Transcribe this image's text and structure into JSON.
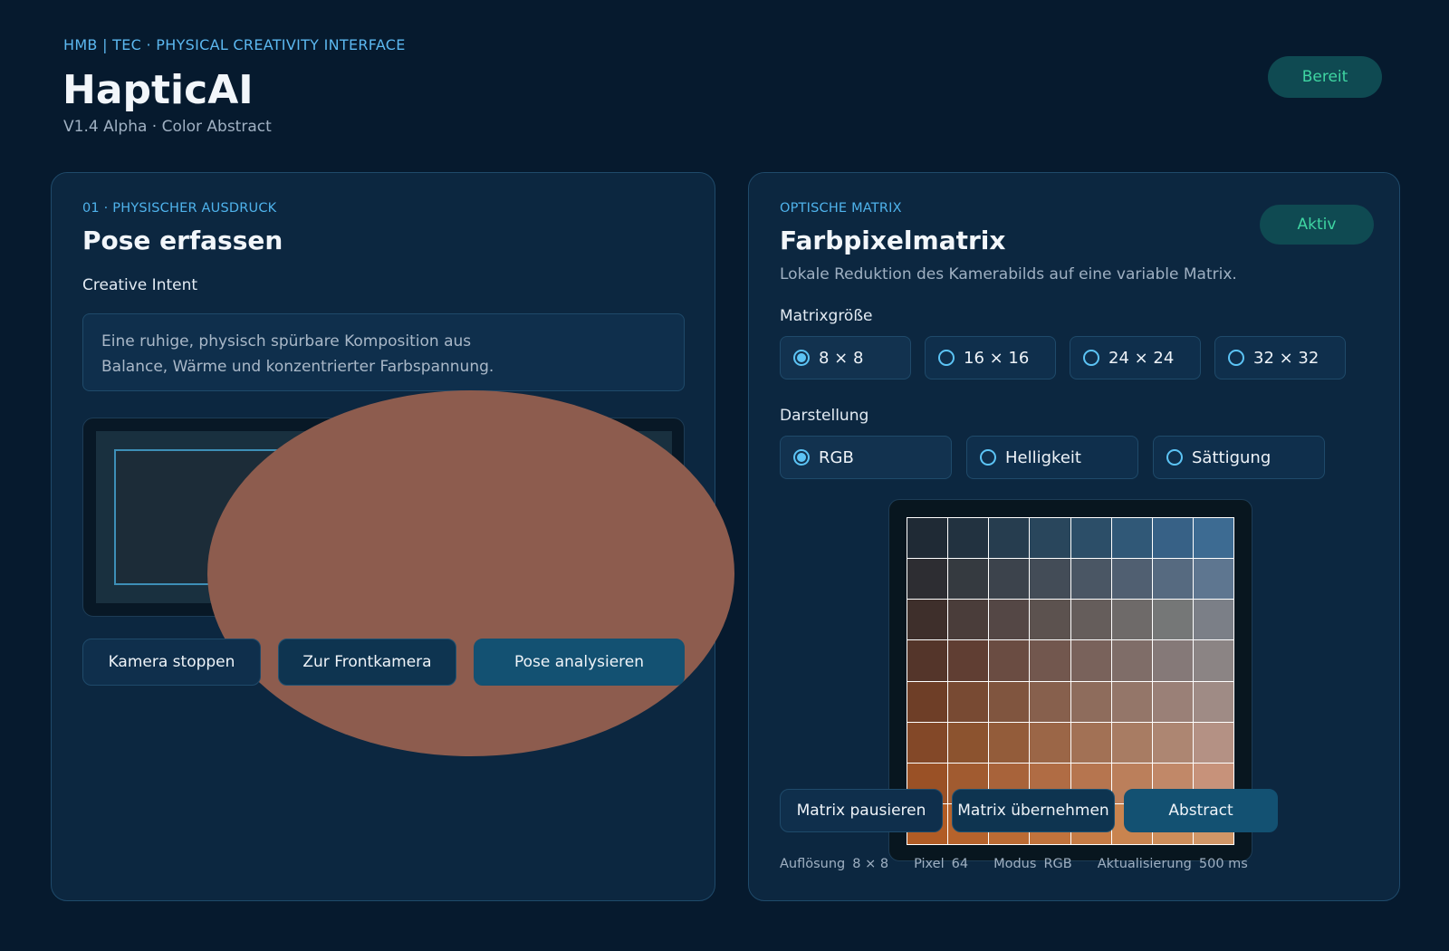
{
  "header": {
    "eyebrow": "HMB | TEC · PHYSICAL CREATIVITY INTERFACE",
    "title": "HapticAI",
    "subtitle": "V1.4 Alpha · Color Abstract",
    "status": "Bereit",
    "status_color": "#3fd5a2"
  },
  "left": {
    "kicker": "01 · PHYSISCHER AUSDRUCK",
    "title": "Pose erfassen",
    "intent_label": "Creative Intent",
    "intent_text_line1": "Eine ruhige, physisch spürbare Komposition aus",
    "intent_text_line2": "Balance, Wärme und konzentrierter Farbspannung.",
    "buttons": {
      "stop_camera": "Kamera stoppen",
      "front_camera": "Zur Frontkamera",
      "analyze": "Pose analysieren"
    }
  },
  "right": {
    "kicker": "OPTISCHE MATRIX",
    "title": "Farbpixelmatrix",
    "status": "Aktiv",
    "description": "Lokale Reduktion des Kamerabilds auf eine variable Matrix.",
    "size_label": "Matrixgröße",
    "size_options": [
      "8 × 8",
      "16 × 16",
      "24 × 24",
      "32 × 32"
    ],
    "size_selected": "8 × 8",
    "mode_label": "Darstellung",
    "mode_options": [
      "RGB",
      "Helligkeit",
      "Sättigung"
    ],
    "mode_selected": "RGB",
    "buttons": {
      "pause": "Matrix pausieren",
      "apply": "Matrix übernehmen",
      "abstract": "Abstract"
    },
    "stats": {
      "resolution_label": "Auflösung",
      "resolution_value": "8 × 8",
      "pixel_label": "Pixel",
      "pixel_value": "64",
      "mode_label": "Modus",
      "mode_value": "RGB",
      "update_label": "Aktualisierung",
      "update_value": "500 ms"
    }
  },
  "matrix_colors": [
    [
      "#1f2a35",
      "#223240",
      "#263d4f",
      "#29465c",
      "#2c4e68",
      "#305877",
      "#376186",
      "#3d6b92"
    ],
    [
      "#2d2d32",
      "#353a40",
      "#3c434c",
      "#434c57",
      "#4a5664",
      "#505f71",
      "#566a80",
      "#5e7690"
    ],
    [
      "#3e2f2b",
      "#4a3d3a",
      "#544745",
      "#5c524f",
      "#655d5b",
      "#6e6a69",
      "#757777",
      "#7b7f87"
    ],
    [
      "#54352a",
      "#603e33",
      "#6a4c42",
      "#72574e",
      "#79625b",
      "#7f6d68",
      "#857978",
      "#8b8484"
    ],
    [
      "#6e3e27",
      "#784a33",
      "#80553f",
      "#87604d",
      "#8e6c5c",
      "#947669",
      "#9a8077",
      "#9f8b85"
    ],
    [
      "#834828",
      "#8c532f",
      "#935c3a",
      "#9b6647",
      "#a27155",
      "#a87c63",
      "#ad8672",
      "#b49184"
    ],
    [
      "#9a5126",
      "#a15b30",
      "#a8633a",
      "#b06c44",
      "#b6754f",
      "#bb7f5b",
      "#c18868",
      "#c7927a"
    ],
    [
      "#b15c25",
      "#b6632c",
      "#bb6b34",
      "#c1733c",
      "#c57b45",
      "#c9844f",
      "#cd8d5a",
      "#d09667"
    ]
  ]
}
